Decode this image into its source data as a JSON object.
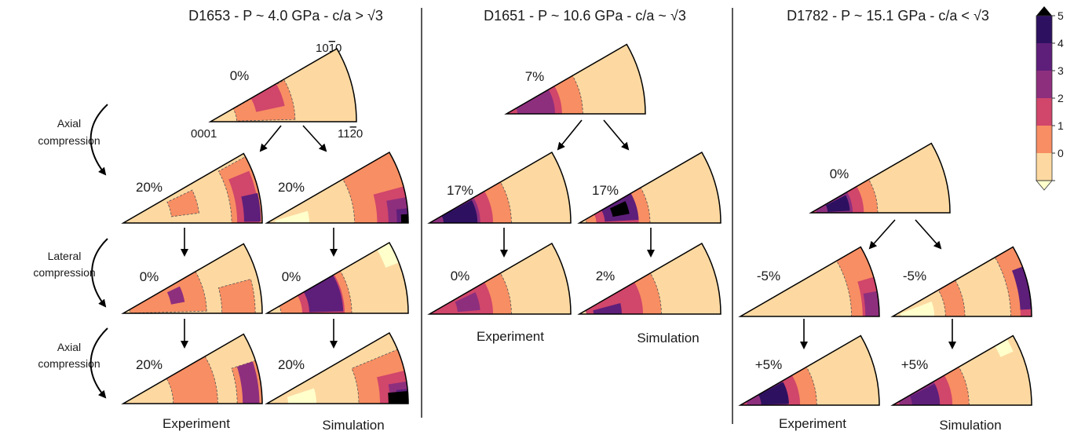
{
  "colorbar": {
    "ticks": [
      "5",
      "4",
      "3",
      "2",
      "1",
      "0"
    ],
    "colors": [
      "#2d1160",
      "#5e1f7a",
      "#8e2f7e",
      "#d1466b",
      "#f88e63",
      "#fdd9a1"
    ],
    "over_color": "#000000",
    "under_color": "#ffffcc"
  },
  "section1": {
    "title": "D1653 - P ~ 4.0 GPa - c/a > √3",
    "pole_1010": "10",
    "pole_1010_bar": "1",
    "pole_1010_tail": "0",
    "pole_0001": "0001",
    "pole_1120_head": "11",
    "pole_1120_bar": "2",
    "pole_1120_tail": "0",
    "step_labels": [
      "Axial",
      "compression",
      "Lateral",
      "compression",
      "Axial",
      "compression"
    ],
    "strains": [
      "0%",
      "20%",
      "20%",
      "0%",
      "0%",
      "20%",
      "20%"
    ],
    "col_experiment": "Experiment",
    "col_simulation": "Simulation"
  },
  "section2": {
    "title": "D1651 - P ~ 10.6 GPa - c/a ~ √3",
    "strains": [
      "7%",
      "17%",
      "17%",
      "0%",
      "2%"
    ],
    "col_experiment": "Experiment",
    "col_simulation": "Simulation"
  },
  "section3": {
    "title": "D1782 - P ~ 15.1 GPa - c/a < √3",
    "strains": [
      "0%",
      "-5%",
      "-5%",
      "+5%",
      "+5%"
    ],
    "col_experiment": "Experiment",
    "col_simulation": "Simulation"
  }
}
